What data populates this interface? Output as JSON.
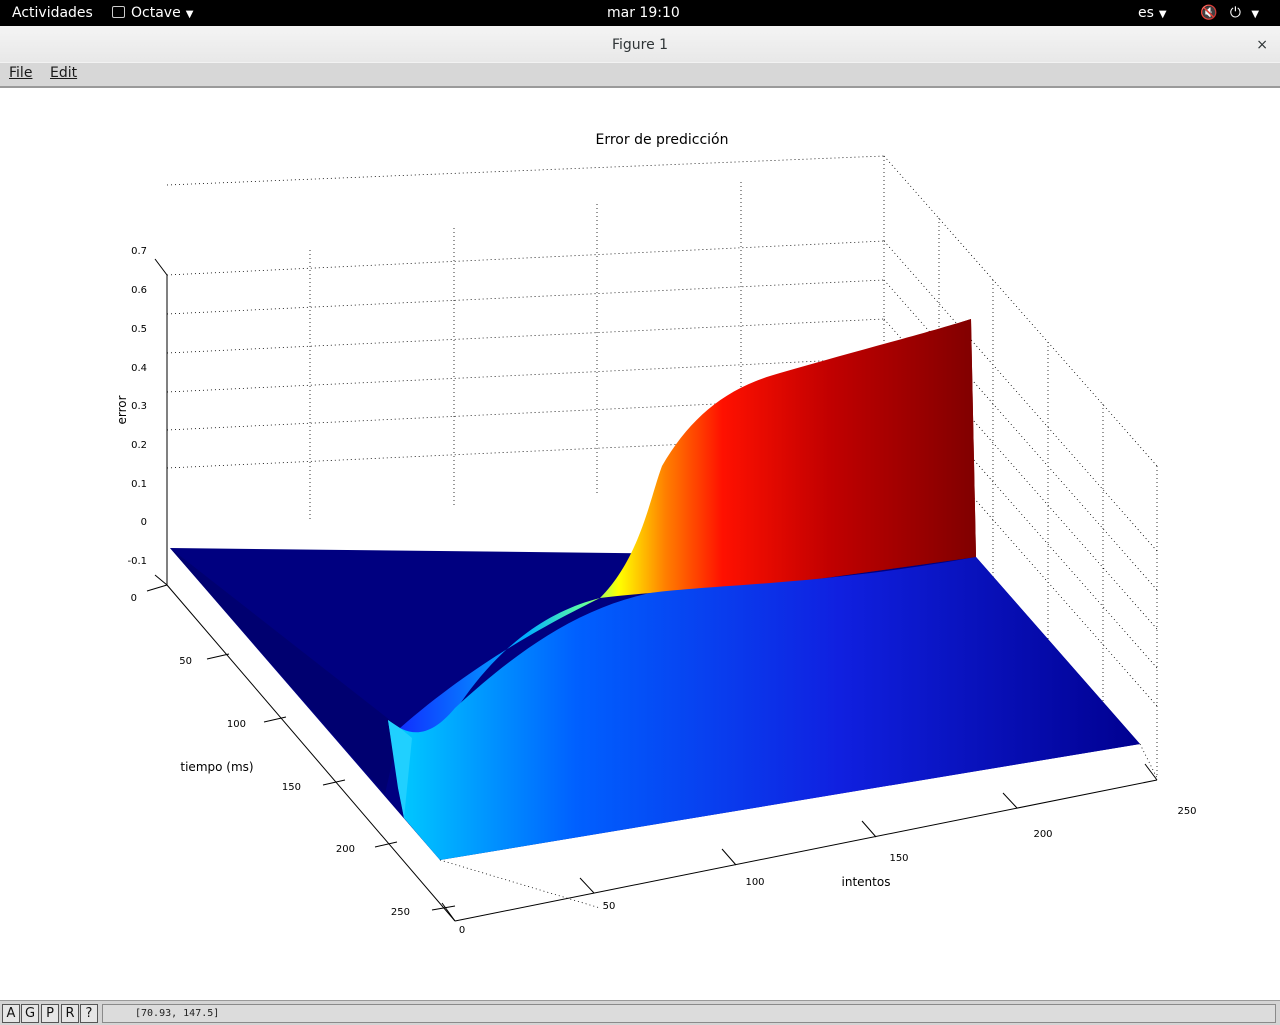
{
  "system_bar": {
    "activities": "Actividades",
    "app_name": "Octave",
    "clock": "mar 19:10",
    "language": "es"
  },
  "window": {
    "title": "Figure 1",
    "close_glyph": "×"
  },
  "menubar": {
    "items": [
      "File",
      "Edit"
    ]
  },
  "chart_data": {
    "type": "surface",
    "title": "Error de predicción",
    "xlabel": "intentos",
    "ylabel": "tiempo (ms)",
    "zlabel": "error",
    "xlim": [
      0,
      250
    ],
    "ylim": [
      0,
      250
    ],
    "zlim": [
      -0.1,
      0.7
    ],
    "xticks": [
      "0",
      "50",
      "100",
      "150",
      "200",
      "250"
    ],
    "yticks": [
      "0",
      "50",
      "100",
      "150",
      "200",
      "250"
    ],
    "zticks": [
      "-0.1",
      "0",
      "0.1",
      "0.2",
      "0.3",
      "0.4",
      "0.5",
      "0.6",
      "0.7"
    ],
    "grid": true,
    "colormap": "jet"
  },
  "statusbar": {
    "buttons": [
      "A",
      "G",
      "P",
      "R",
      "?"
    ],
    "coordinates": "[70.93, 147.5]"
  }
}
